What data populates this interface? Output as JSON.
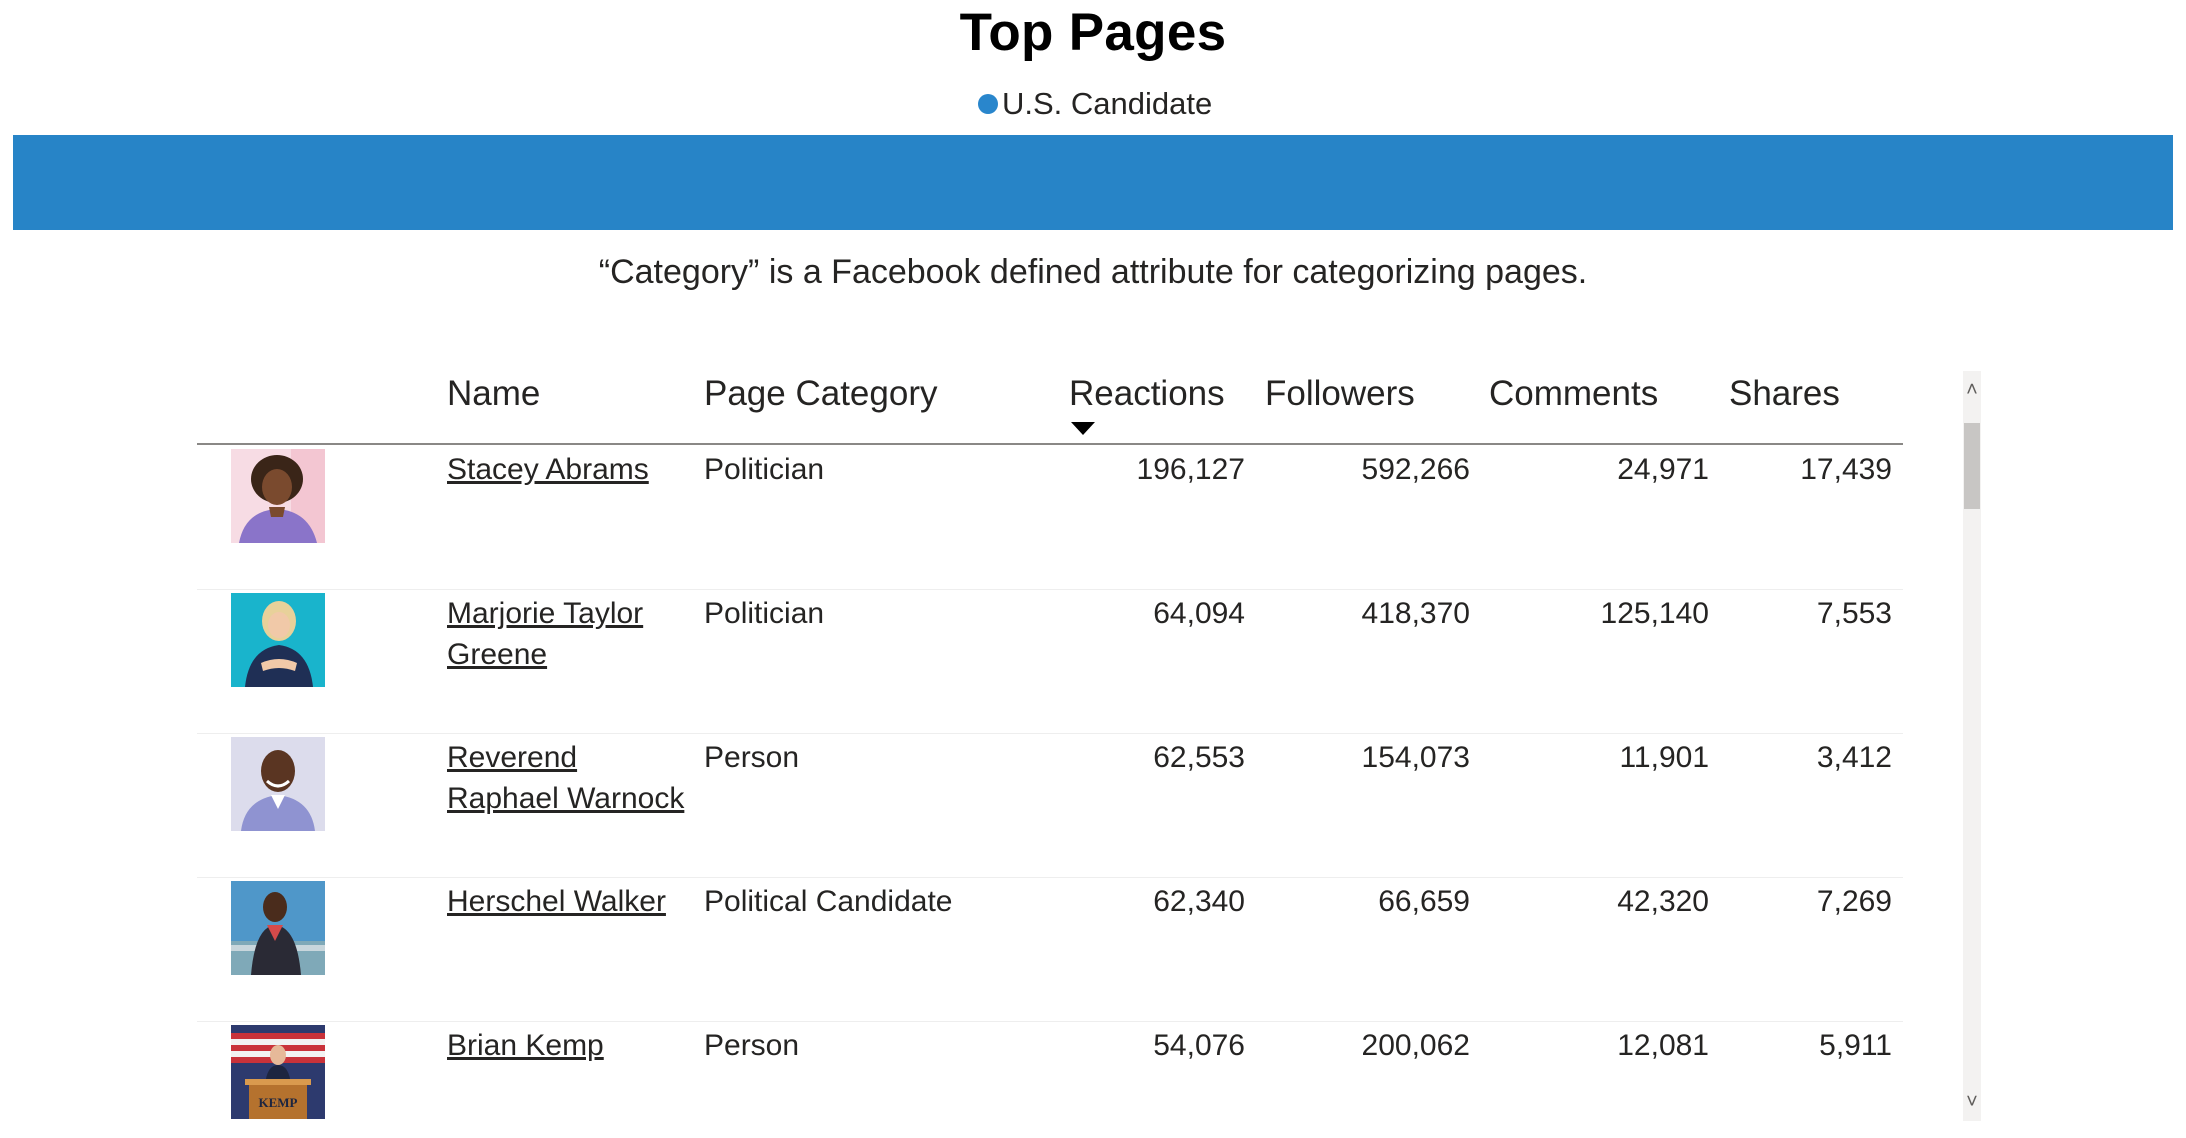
{
  "title": "Top Pages",
  "legend": {
    "label": "U.S. Candidate",
    "color": "#2986cc"
  },
  "banner_color": "#2784c7",
  "subtitle": "“Category” is a Facebook defined attribute for categorizing pages.",
  "table": {
    "columns": {
      "name": "Name",
      "category": "Page Category",
      "reactions": "Reactions",
      "followers": "Followers",
      "comments": "Comments",
      "shares": "Shares"
    },
    "sorted_by": "Reactions",
    "sort_direction": "descending",
    "rows": [
      {
        "name": "Stacey Abrams",
        "category": "Politician",
        "reactions": "196,127",
        "followers": "592,266",
        "comments": "24,971",
        "shares": "17,439",
        "avatar": "portrait-purple"
      },
      {
        "name": "Marjorie Taylor Greene",
        "category": "Politician",
        "reactions": "64,094",
        "followers": "418,370",
        "comments": "125,140",
        "shares": "7,553",
        "avatar": "portrait-teal"
      },
      {
        "name": "Reverend Raphael Warnock",
        "category": "Person",
        "reactions": "62,553",
        "followers": "154,073",
        "comments": "11,901",
        "shares": "3,412",
        "avatar": "portrait-lavender"
      },
      {
        "name": "Herschel Walker",
        "category": "Political Candidate",
        "reactions": "62,340",
        "followers": "66,659",
        "comments": "42,320",
        "shares": "7,269",
        "avatar": "portrait-sky"
      },
      {
        "name": "Brian Kemp",
        "category": "Person",
        "reactions": "54,076",
        "followers": "200,062",
        "comments": "12,081",
        "shares": "5,911",
        "avatar": "portrait-podium",
        "avatar_text": "KEMP"
      }
    ]
  },
  "scrollbar": {
    "up": "˄",
    "down": "˅"
  }
}
